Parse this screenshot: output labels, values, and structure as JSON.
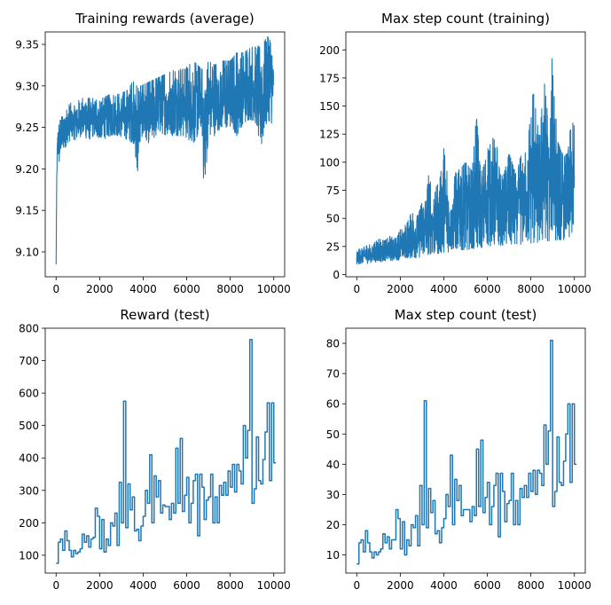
{
  "colors": {
    "series": "#1f77b4",
    "axis": "#000000",
    "background": "#ffffff"
  },
  "chart_data": [
    {
      "id": "training-rewards",
      "type": "line",
      "title": "Training rewards (average)",
      "xlabel": "",
      "ylabel": "",
      "xlim": [
        -500,
        10500
      ],
      "ylim": [
        9.07,
        9.365
      ],
      "xticks": [
        0,
        2000,
        4000,
        6000,
        8000,
        10000
      ],
      "yticks": [
        9.1,
        9.15,
        9.2,
        9.25,
        9.3,
        9.35
      ],
      "ytick_labels": [
        "9.10",
        "9.15",
        "9.20",
        "9.25",
        "9.30",
        "9.35"
      ],
      "grid": false,
      "x": [
        0,
        30,
        60,
        100,
        150,
        200,
        300,
        400,
        500,
        700,
        900,
        1200,
        1500,
        1800,
        2100,
        2500,
        2900,
        3300,
        3600,
        3700,
        3900,
        4300,
        4700,
        5100,
        5500,
        5900,
        6300,
        6700,
        6800,
        7000,
        7300,
        7600,
        8000,
        8300,
        8600,
        8900,
        9200,
        9400,
        9700,
        9900,
        9990
      ],
      "band_low": [
        9.085,
        9.18,
        9.21,
        9.215,
        9.2,
        9.22,
        9.225,
        9.225,
        9.23,
        9.235,
        9.235,
        9.24,
        9.235,
        9.24,
        9.235,
        9.24,
        9.24,
        9.235,
        9.23,
        9.185,
        9.24,
        9.23,
        9.245,
        9.24,
        9.24,
        9.24,
        9.23,
        9.25,
        9.165,
        9.24,
        9.24,
        9.25,
        9.25,
        9.24,
        9.255,
        9.26,
        9.255,
        9.22,
        9.26,
        9.255,
        9.27
      ],
      "band_high": [
        9.09,
        9.2,
        9.24,
        9.25,
        9.255,
        9.26,
        9.265,
        9.27,
        9.275,
        9.28,
        9.28,
        9.285,
        9.285,
        9.285,
        9.285,
        9.29,
        9.29,
        9.295,
        9.31,
        9.3,
        9.3,
        9.305,
        9.31,
        9.315,
        9.32,
        9.32,
        9.33,
        9.32,
        9.315,
        9.33,
        9.325,
        9.33,
        9.33,
        9.34,
        9.34,
        9.345,
        9.35,
        9.345,
        9.36,
        9.355,
        9.32
      ]
    },
    {
      "id": "max-step-training",
      "type": "line",
      "title": "Max step count (training)",
      "xlabel": "",
      "ylabel": "",
      "xlim": [
        -500,
        10500
      ],
      "ylim": [
        -2,
        216
      ],
      "xticks": [
        0,
        2000,
        4000,
        6000,
        8000,
        10000
      ],
      "yticks": [
        0,
        25,
        50,
        75,
        100,
        125,
        150,
        175,
        200
      ],
      "grid": false,
      "x": [
        0,
        250,
        500,
        800,
        1000,
        1300,
        1500,
        1800,
        2000,
        2300,
        2500,
        2800,
        3000,
        3200,
        3300,
        3500,
        3800,
        4000,
        4300,
        4500,
        4800,
        5000,
        5300,
        5500,
        5700,
        5900,
        6100,
        6400,
        6700,
        7000,
        7300,
        7600,
        7900,
        8100,
        8400,
        8600,
        8850,
        9000,
        9200,
        9500,
        9700,
        9850,
        10000
      ],
      "band_low": [
        9,
        10,
        10,
        11,
        11,
        12,
        12,
        13,
        13,
        14,
        15,
        15,
        16,
        17,
        18,
        18,
        19,
        20,
        20,
        21,
        22,
        22,
        23,
        23,
        24,
        25,
        25,
        25,
        26,
        26,
        27,
        27,
        28,
        28,
        29,
        30,
        30,
        30,
        31,
        31,
        32,
        32,
        32
      ],
      "band_high": [
        22,
        24,
        26,
        28,
        32,
        30,
        34,
        32,
        40,
        45,
        55,
        52,
        65,
        70,
        88,
        75,
        82,
        112,
        70,
        90,
        95,
        100,
        92,
        143,
        90,
        100,
        125,
        118,
        85,
        108,
        90,
        110,
        125,
        165,
        120,
        175,
        128,
        207,
        120,
        105,
        108,
        138,
        132
      ]
    },
    {
      "id": "reward-test",
      "type": "line",
      "step": true,
      "title": "Reward (test)",
      "xlabel": "",
      "ylabel": "",
      "xlim": [
        -500,
        10500
      ],
      "ylim": [
        45,
        800
      ],
      "xticks": [
        0,
        2000,
        4000,
        6000,
        8000,
        10000
      ],
      "yticks": [
        100,
        200,
        300,
        400,
        500,
        600,
        700,
        800
      ],
      "grid": false,
      "x": [
        0,
        100,
        200,
        300,
        400,
        500,
        600,
        700,
        800,
        900,
        1000,
        1100,
        1200,
        1300,
        1400,
        1500,
        1600,
        1700,
        1800,
        1900,
        2000,
        2100,
        2200,
        2300,
        2400,
        2500,
        2600,
        2700,
        2800,
        2900,
        3000,
        3100,
        3200,
        3300,
        3400,
        3500,
        3600,
        3700,
        3800,
        3900,
        4000,
        4100,
        4200,
        4300,
        4400,
        4500,
        4600,
        4700,
        4800,
        4900,
        5000,
        5100,
        5200,
        5300,
        5400,
        5500,
        5600,
        5700,
        5800,
        5900,
        6000,
        6100,
        6200,
        6300,
        6400,
        6500,
        6600,
        6700,
        6800,
        6900,
        7000,
        7100,
        7200,
        7300,
        7400,
        7500,
        7600,
        7700,
        7800,
        7900,
        8000,
        8100,
        8200,
        8300,
        8400,
        8500,
        8600,
        8700,
        8800,
        8900,
        9000,
        9100,
        9200,
        9300,
        9400,
        9500,
        9600,
        9700,
        9800,
        9900,
        10000
      ],
      "y": [
        75,
        140,
        150,
        115,
        175,
        145,
        115,
        95,
        115,
        105,
        110,
        120,
        165,
        140,
        160,
        125,
        150,
        155,
        245,
        220,
        120,
        210,
        110,
        150,
        130,
        200,
        190,
        230,
        130,
        325,
        200,
        575,
        185,
        320,
        240,
        280,
        175,
        180,
        145,
        190,
        220,
        300,
        260,
        410,
        200,
        345,
        280,
        330,
        230,
        255,
        250,
        250,
        210,
        260,
        230,
        430,
        260,
        460,
        235,
        285,
        340,
        200,
        260,
        330,
        350,
        160,
        350,
        310,
        210,
        270,
        280,
        350,
        200,
        280,
        200,
        315,
        285,
        325,
        285,
        360,
        310,
        380,
        295,
        380,
        360,
        320,
        500,
        400,
        485,
        765,
        260,
        305,
        465,
        330,
        320,
        395,
        480,
        570,
        330,
        570,
        385
      ],
      "end_x": 10100
    },
    {
      "id": "max-step-test",
      "type": "line",
      "step": true,
      "title": "Max step count (test)",
      "xlabel": "",
      "ylabel": "",
      "xlim": [
        -500,
        10500
      ],
      "ylim": [
        4,
        85
      ],
      "xticks": [
        0,
        2000,
        4000,
        6000,
        8000,
        10000
      ],
      "yticks": [
        10,
        20,
        30,
        40,
        50,
        60,
        70,
        80
      ],
      "grid": false,
      "x": [
        0,
        100,
        200,
        300,
        400,
        500,
        600,
        700,
        800,
        900,
        1000,
        1100,
        1200,
        1300,
        1400,
        1500,
        1600,
        1700,
        1800,
        1900,
        2000,
        2100,
        2200,
        2300,
        2400,
        2500,
        2600,
        2700,
        2800,
        2900,
        3000,
        3100,
        3200,
        3300,
        3400,
        3500,
        3600,
        3700,
        3800,
        3900,
        4000,
        4100,
        4200,
        4300,
        4400,
        4500,
        4600,
        4700,
        4800,
        4900,
        5000,
        5100,
        5200,
        5300,
        5400,
        5500,
        5600,
        5700,
        5800,
        5900,
        6000,
        6100,
        6200,
        6300,
        6400,
        6500,
        6600,
        6700,
        6800,
        6900,
        7000,
        7100,
        7200,
        7300,
        7400,
        7500,
        7600,
        7700,
        7800,
        7900,
        8000,
        8100,
        8200,
        8300,
        8400,
        8500,
        8600,
        8700,
        8800,
        8900,
        9000,
        9100,
        9200,
        9300,
        9400,
        9500,
        9600,
        9700,
        9800,
        9900,
        10000
      ],
      "y": [
        7,
        14,
        15,
        11,
        18,
        14,
        11,
        9,
        11,
        10,
        11,
        12,
        17,
        14,
        16,
        12,
        15,
        15,
        25,
        22,
        12,
        21,
        10,
        15,
        13,
        20,
        19,
        23,
        13,
        33,
        20,
        61,
        19,
        32,
        24,
        28,
        17,
        18,
        14,
        19,
        22,
        30,
        26,
        43,
        20,
        35,
        28,
        33,
        23,
        25,
        25,
        25,
        21,
        26,
        23,
        45,
        26,
        48,
        24,
        29,
        34,
        20,
        26,
        33,
        37,
        16,
        37,
        31,
        21,
        27,
        28,
        37,
        20,
        28,
        20,
        32,
        29,
        33,
        29,
        37,
        31,
        38,
        30,
        38,
        37,
        33,
        53,
        40,
        51,
        81,
        26,
        31,
        49,
        34,
        33,
        41,
        50,
        60,
        34,
        60,
        40
      ],
      "end_x": 10100
    }
  ]
}
